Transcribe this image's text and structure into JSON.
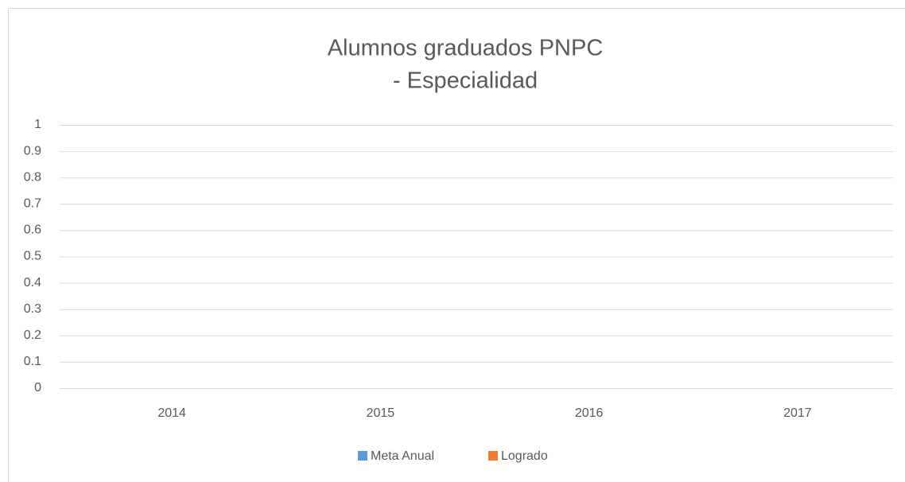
{
  "chart_data": {
    "type": "bar",
    "title": [
      "Alumnos graduados PNPC",
      "- Especialidad"
    ],
    "categories": [
      "2014",
      "2015",
      "2016",
      "2017"
    ],
    "series": [
      {
        "name": "Meta Anual",
        "color": "#5b9bd5",
        "values": [
          0,
          0,
          0,
          0
        ]
      },
      {
        "name": "Logrado",
        "color": "#ed7d31",
        "values": [
          0,
          0,
          0,
          0
        ]
      }
    ],
    "ylim": [
      0,
      1
    ],
    "yticks": [
      0,
      0.1,
      0.2,
      0.3,
      0.4,
      0.5,
      0.6,
      0.7,
      0.8,
      0.9,
      1
    ],
    "grid": true,
    "legend": "bottom"
  }
}
